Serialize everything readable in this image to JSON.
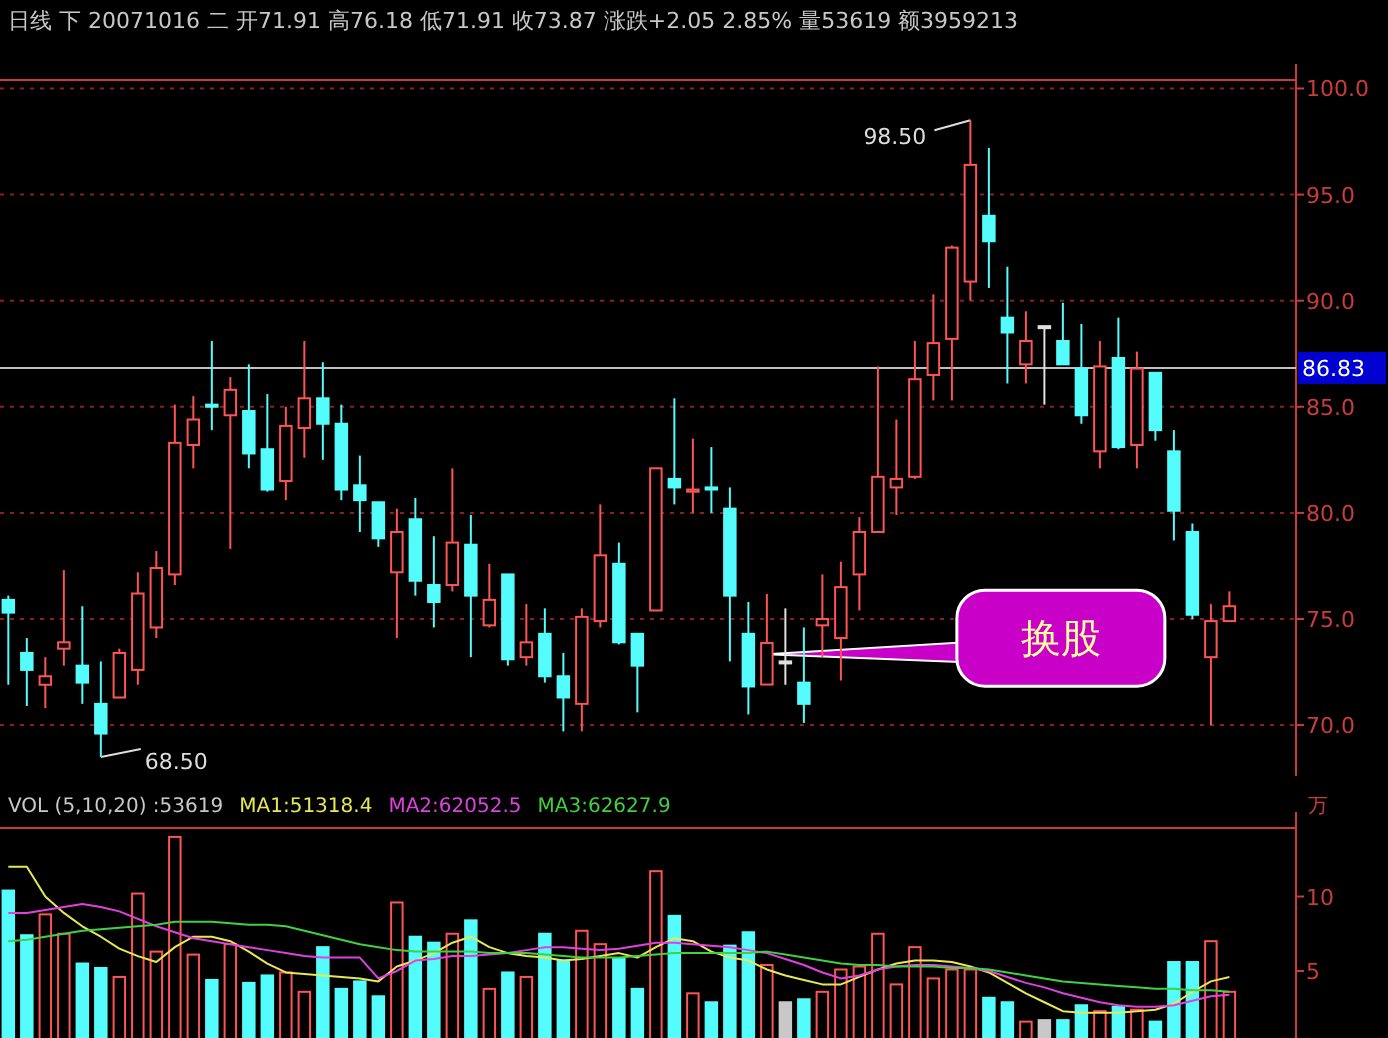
{
  "chart_data": [
    {
      "type": "candlestick",
      "title": "日线 下 20071016 二 开71.91 高76.18 低71.91 收73.87 涨跌+2.05 2.85% 量53619 额3959213",
      "categories": [
        null,
        null,
        null,
        null,
        null,
        null,
        null,
        null,
        null,
        null,
        null,
        null,
        null,
        null,
        null,
        null,
        null,
        null,
        null,
        null,
        null,
        null,
        null,
        null,
        null,
        null,
        null,
        null,
        null,
        null,
        null,
        null,
        null,
        null,
        null,
        null,
        null,
        null,
        null,
        null,
        null,
        null,
        null,
        null,
        null,
        null,
        null,
        null,
        null,
        null,
        null,
        null,
        null,
        null,
        null,
        null,
        null,
        null,
        null,
        null,
        null,
        null,
        null,
        null,
        null,
        null,
        null
      ],
      "ohlc": [
        [
          75.9,
          76.1,
          71.9,
          75.3
        ],
        [
          73.4,
          74.1,
          70.9,
          72.6
        ],
        [
          71.9,
          73.2,
          70.8,
          72.3
        ],
        [
          73.6,
          77.3,
          72.8,
          73.9
        ],
        [
          72.8,
          75.6,
          71.0,
          72.0
        ],
        [
          71.0,
          73.0,
          68.5,
          69.6
        ],
        [
          71.3,
          73.6,
          71.3,
          73.4
        ],
        [
          72.6,
          77.2,
          71.9,
          76.2
        ],
        [
          74.6,
          78.2,
          74.1,
          77.4
        ],
        [
          77.1,
          85.1,
          76.6,
          83.3
        ],
        [
          83.2,
          85.5,
          82.1,
          84.4
        ],
        [
          85.1,
          88.1,
          83.9,
          85.0
        ],
        [
          84.6,
          86.4,
          78.3,
          85.8
        ],
        [
          84.8,
          87.0,
          82.1,
          82.8
        ],
        [
          83.0,
          85.6,
          81.0,
          81.1
        ],
        [
          81.5,
          85.0,
          80.6,
          84.1
        ],
        [
          84.0,
          88.1,
          82.6,
          85.4
        ],
        [
          85.4,
          87.1,
          82.5,
          84.2
        ],
        [
          84.2,
          85.1,
          80.6,
          81.1
        ],
        [
          81.3,
          82.7,
          79.1,
          80.6
        ],
        [
          80.5,
          80.5,
          78.4,
          78.8
        ],
        [
          77.2,
          80.2,
          74.1,
          79.1
        ],
        [
          79.7,
          80.7,
          76.1,
          76.8
        ],
        [
          76.6,
          78.9,
          74.6,
          75.8
        ],
        [
          76.6,
          82.1,
          76.3,
          78.6
        ],
        [
          78.5,
          79.9,
          73.2,
          76.1
        ],
        [
          74.7,
          77.6,
          74.6,
          75.9
        ],
        [
          77.1,
          77.1,
          72.8,
          73.1
        ],
        [
          73.2,
          75.7,
          72.8,
          73.9
        ],
        [
          74.3,
          75.5,
          72.0,
          72.3
        ],
        [
          72.3,
          73.4,
          69.7,
          71.3
        ],
        [
          71.0,
          75.5,
          69.7,
          75.1
        ],
        [
          74.9,
          80.4,
          74.6,
          78.0
        ],
        [
          77.6,
          78.6,
          73.8,
          73.9
        ],
        [
          74.3,
          74.3,
          70.6,
          72.8
        ],
        [
          75.4,
          82.1,
          75.4,
          82.1
        ],
        [
          81.6,
          85.4,
          80.4,
          81.2
        ],
        [
          81.0,
          83.5,
          80.0,
          81.1
        ],
        [
          81.2,
          83.1,
          80.0,
          81.1
        ],
        [
          80.2,
          81.2,
          73.0,
          76.1
        ],
        [
          74.3,
          75.8,
          70.5,
          71.82
        ],
        [
          71.91,
          76.18,
          71.91,
          73.87
        ],
        [
          73.0,
          75.5,
          71.9,
          73.0
        ],
        [
          72.0,
          74.6,
          70.1,
          71.0
        ],
        [
          74.7,
          77.1,
          73.2,
          75.0
        ],
        [
          74.1,
          77.7,
          72.1,
          76.5
        ],
        [
          77.1,
          79.8,
          75.4,
          79.1
        ],
        [
          79.1,
          86.9,
          79.1,
          81.7
        ],
        [
          81.2,
          84.4,
          79.9,
          81.6
        ],
        [
          81.7,
          88.1,
          81.6,
          86.3
        ],
        [
          86.5,
          90.3,
          85.3,
          88.0
        ],
        [
          88.2,
          92.6,
          85.3,
          92.5
        ],
        [
          90.9,
          98.5,
          90.0,
          96.4
        ],
        [
          94.0,
          97.2,
          90.6,
          92.8
        ],
        [
          89.2,
          91.6,
          86.1,
          88.5
        ],
        [
          87.0,
          89.5,
          86.1,
          88.1
        ],
        [
          88.8,
          88.8,
          85.1,
          88.8
        ],
        [
          88.1,
          89.9,
          87.0,
          87.0
        ],
        [
          86.8,
          88.9,
          84.2,
          84.6
        ],
        [
          82.9,
          88.1,
          82.1,
          86.9
        ],
        [
          87.3,
          89.2,
          83.0,
          83.1
        ],
        [
          83.2,
          87.6,
          82.1,
          86.8
        ],
        [
          86.6,
          86.6,
          83.4,
          83.9
        ],
        [
          82.9,
          83.9,
          78.7,
          80.1
        ],
        [
          79.1,
          79.5,
          75.0,
          75.2
        ],
        [
          73.2,
          75.7,
          70.0,
          74.9
        ],
        [
          74.9,
          76.3,
          74.9,
          75.6
        ]
      ],
      "colors": [
        "#54fcfc",
        "#54fcfc",
        "#ff5454",
        "#ff5454",
        "#54fcfc",
        "#54fcfc",
        "#ff5454",
        "#ff5454",
        "#ff5454",
        "#ff5454",
        "#ff5454",
        "#54fcfc",
        "#ff5454",
        "#54fcfc",
        "#54fcfc",
        "#ff5454",
        "#ff5454",
        "#54fcfc",
        "#54fcfc",
        "#54fcfc",
        "#54fcfc",
        "#ff5454",
        "#54fcfc",
        "#54fcfc",
        "#ff5454",
        "#54fcfc",
        "#ff5454",
        "#54fcfc",
        "#ff5454",
        "#54fcfc",
        "#54fcfc",
        "#ff5454",
        "#ff5454",
        "#54fcfc",
        "#54fcfc",
        "#ff5454",
        "#54fcfc",
        "#ff5454",
        "#54fcfc",
        "#54fcfc",
        "#54fcfc",
        "#ff5454",
        "#e0e0e0",
        "#54fcfc",
        "#ff5454",
        "#ff5454",
        "#ff5454",
        "#ff5454",
        "#ff5454",
        "#ff5454",
        "#ff5454",
        "#ff5454",
        "#ff5454",
        "#54fcfc",
        "#54fcfc",
        "#ff5454",
        "#e0e0e0",
        "#54fcfc",
        "#54fcfc",
        "#ff5454",
        "#54fcfc",
        "#ff5454",
        "#54fcfc",
        "#54fcfc",
        "#54fcfc",
        "#ff5454",
        "#ff5454"
      ],
      "ylim": [
        67.6,
        100.4
      ],
      "yticks": [
        {
          "value": 70,
          "label": "70.0"
        },
        {
          "value": 75,
          "label": "75.0"
        },
        {
          "value": 80,
          "label": "80.0"
        },
        {
          "value": 85,
          "label": "85.0"
        },
        {
          "value": 90,
          "label": "90.0"
        },
        {
          "value": 95,
          "label": "95.0"
        },
        {
          "value": 100,
          "label": "100.0"
        }
      ],
      "grid": "y",
      "ref_lines": [
        {
          "axis": "y",
          "value": 86.83,
          "label": "86.83",
          "color": "#c0c0c0"
        }
      ],
      "annotations": [
        "98.50",
        "68.50",
        "换股"
      ]
    },
    {
      "type": "bar",
      "title": "VOL (5,10,20) :53619",
      "ylabel": "万",
      "categories": [
        null,
        null,
        null,
        null,
        null,
        null,
        null,
        null,
        null,
        null,
        null,
        null,
        null,
        null,
        null,
        null,
        null,
        null,
        null,
        null,
        null,
        null,
        null,
        null,
        null,
        null,
        null,
        null,
        null,
        null,
        null,
        null,
        null,
        null,
        null,
        null,
        null,
        null,
        null,
        null,
        null,
        null,
        null,
        null,
        null,
        null,
        null,
        null,
        null,
        null,
        null,
        null,
        null,
        null,
        null,
        null,
        null,
        null,
        null,
        null,
        null,
        null,
        null,
        null,
        null,
        null,
        null
      ],
      "series": [
        {
          "colors": [
            "#54fcfc",
            "#54fcfc",
            "#ff5454",
            "#ff5454",
            "#54fcfc",
            "#54fcfc",
            "#ff5454",
            "#ff5454",
            "#ff5454",
            "#ff5454",
            "#ff5454",
            "#54fcfc",
            "#ff5454",
            "#54fcfc",
            "#54fcfc",
            "#ff5454",
            "#ff5454",
            "#54fcfc",
            "#54fcfc",
            "#54fcfc",
            "#54fcfc",
            "#ff5454",
            "#54fcfc",
            "#54fcfc",
            "#ff5454",
            "#54fcfc",
            "#ff5454",
            "#54fcfc",
            "#ff5454",
            "#54fcfc",
            "#54fcfc",
            "#ff5454",
            "#ff5454",
            "#54fcfc",
            "#54fcfc",
            "#ff5454",
            "#54fcfc",
            "#ff5454",
            "#54fcfc",
            "#54fcfc",
            "#54fcfc",
            "#ff5454",
            "#c8c8c8",
            "#54fcfc",
            "#ff5454",
            "#ff5454",
            "#ff5454",
            "#ff5454",
            "#ff5454",
            "#ff5454",
            "#ff5454",
            "#ff5454",
            "#ff5454",
            "#54fcfc",
            "#54fcfc",
            "#ff5454",
            "#c8c8c8",
            "#54fcfc",
            "#54fcfc",
            "#ff5454",
            "#54fcfc",
            "#ff5454",
            "#54fcfc",
            "#54fcfc",
            "#54fcfc",
            "#ff5454",
            "#ff5454"
          ],
          "values": [
            10.4,
            7.4,
            8.8,
            7.5,
            5.5,
            5.2,
            4.6,
            10.2,
            6.3,
            14.0,
            6.1,
            4.4,
            6.8,
            4.2,
            4.7,
            4.9,
            3.6,
            6.6,
            3.8,
            4.3,
            3.3,
            9.6,
            7.3,
            6.9,
            7.5,
            8.4,
            3.8,
            4.9,
            4.6,
            7.5,
            5.7,
            7.7,
            6.8,
            5.8,
            3.8,
            11.7,
            8.7,
            3.5,
            2.9,
            6.7,
            7.6,
            5.4,
            2.9,
            3.1,
            3.6,
            5.1,
            5.3,
            7.5,
            4.1,
            6.6,
            4.5,
            5.1,
            5.1,
            3.2,
            2.9,
            1.6,
            1.7,
            1.7,
            2.7,
            2.3,
            2.6,
            2.4,
            1.6,
            5.6,
            5.6,
            7.0,
            3.6
          ]
        },
        {
          "name": "MA1:51318.4",
          "type": "line",
          "color": "#e8e854",
          "values": [
            12.0,
            12.0,
            10.0,
            8.9,
            8.0,
            7.3,
            6.5,
            6.0,
            5.6,
            6.6,
            7.3,
            7.3,
            7.0,
            6.3,
            5.5,
            4.9,
            4.8,
            4.7,
            4.6,
            4.5,
            4.3,
            5.3,
            5.7,
            6.2,
            6.9,
            7.3,
            6.6,
            6.2,
            6.0,
            5.9,
            5.7,
            5.8,
            6.0,
            6.2,
            5.9,
            6.6,
            7.2,
            7.0,
            6.3,
            5.9,
            5.7,
            5.1,
            4.7,
            4.4,
            4.1,
            4.1,
            4.6,
            5.1,
            5.5,
            5.7,
            5.7,
            5.6,
            5.3,
            4.9,
            4.2,
            3.5,
            2.9,
            2.3,
            2.2,
            2.2,
            2.2,
            2.3,
            2.4,
            2.8,
            3.6,
            4.3,
            4.6
          ]
        },
        {
          "name": "MA2:62052.5",
          "type": "line",
          "color": "#e040e0",
          "values": [
            8.9,
            8.9,
            9.1,
            9.3,
            9.5,
            9.3,
            9.0,
            8.5,
            8.0,
            7.6,
            7.2,
            7.0,
            6.8,
            6.6,
            6.4,
            6.2,
            6.0,
            5.9,
            5.9,
            5.9,
            4.5,
            5.0,
            5.7,
            5.8,
            6.0,
            6.0,
            6.1,
            6.2,
            6.4,
            6.6,
            6.6,
            6.5,
            6.4,
            6.5,
            6.7,
            6.9,
            6.9,
            6.8,
            6.7,
            6.6,
            6.4,
            6.2,
            5.8,
            5.4,
            4.9,
            4.5,
            4.7,
            5.1,
            5.3,
            5.4,
            5.4,
            5.3,
            5.2,
            5.0,
            4.6,
            4.2,
            3.9,
            3.5,
            3.2,
            2.9,
            2.7,
            2.6,
            2.6,
            2.7,
            3.0,
            3.3,
            3.4
          ]
        },
        {
          "name": "MA3:62627.9",
          "type": "line",
          "color": "#40d040",
          "values": [
            7.0,
            7.1,
            7.3,
            7.5,
            7.7,
            7.8,
            7.9,
            8.0,
            8.1,
            8.3,
            8.3,
            8.3,
            8.2,
            8.1,
            8.1,
            8.0,
            7.7,
            7.4,
            7.1,
            6.8,
            6.6,
            6.4,
            6.3,
            6.3,
            6.3,
            6.3,
            6.2,
            6.2,
            6.2,
            6.1,
            6.0,
            5.9,
            5.9,
            5.9,
            6.0,
            6.1,
            6.2,
            6.2,
            6.2,
            6.2,
            6.2,
            6.3,
            6.1,
            5.9,
            5.7,
            5.5,
            5.4,
            5.4,
            5.3,
            5.3,
            5.3,
            5.2,
            5.2,
            5.1,
            4.9,
            4.7,
            4.5,
            4.3,
            4.2,
            4.1,
            4.0,
            3.9,
            3.8,
            3.8,
            3.7,
            3.7,
            3.6
          ]
        }
      ],
      "ylim": [
        0.5,
        14.6
      ],
      "yticks": [
        5,
        10
      ],
      "legend": "top left"
    }
  ]
}
